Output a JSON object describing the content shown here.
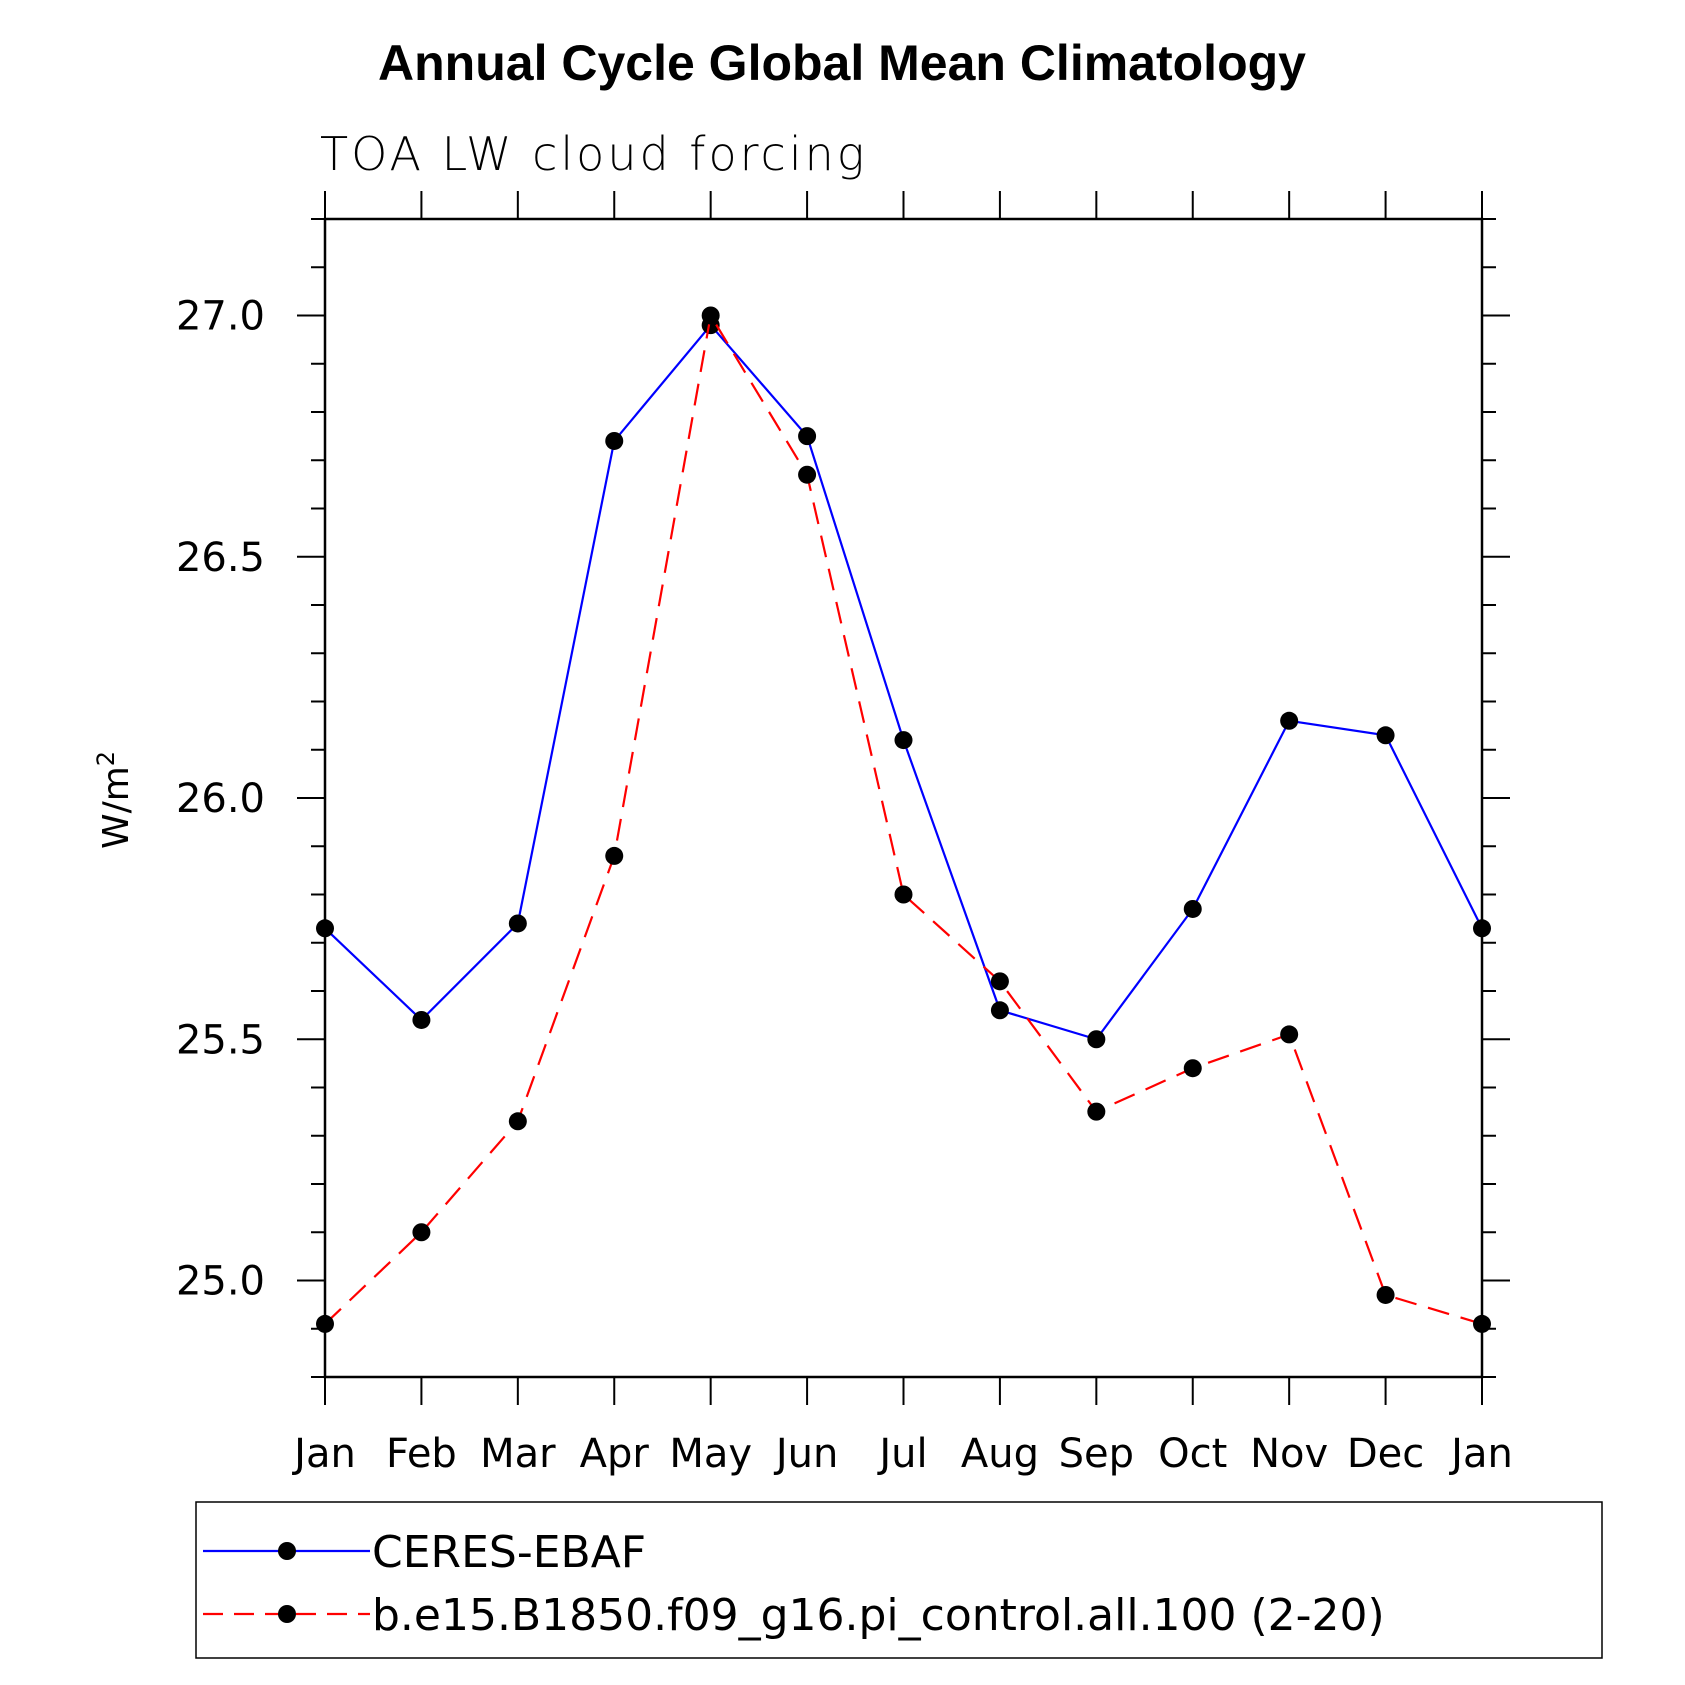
{
  "chart_data": {
    "type": "line",
    "title": "Annual Cycle Global Mean Climatology",
    "subtitle": "TOA LW cloud forcing",
    "xlabel": "",
    "ylabel": "W/m",
    "ylabel_superscript": "2",
    "categories": [
      "Jan",
      "Feb",
      "Mar",
      "Apr",
      "May",
      "Jun",
      "Jul",
      "Aug",
      "Sep",
      "Oct",
      "Nov",
      "Dec",
      "Jan"
    ],
    "ylim": [
      24.8,
      27.2
    ],
    "yticks_major": [
      "25.0",
      "25.5",
      "26.0",
      "26.5",
      "27.0"
    ],
    "series": [
      {
        "name": "CERES-EBAF",
        "color": "#0000ff",
        "dash": "solid",
        "marker": "circle",
        "values": [
          25.73,
          25.54,
          25.74,
          26.74,
          26.98,
          26.75,
          26.12,
          25.56,
          25.5,
          25.77,
          26.16,
          26.13,
          25.73
        ]
      },
      {
        "name": "b.e15.B1850.f09_g16.pi_control.all.100 (2-20)",
        "color": "#ff0000",
        "dash": "dashed",
        "marker": "circle",
        "values": [
          24.91,
          25.1,
          25.33,
          25.88,
          27.0,
          26.67,
          25.8,
          25.62,
          25.35,
          25.44,
          25.51,
          24.97,
          24.91
        ]
      }
    ],
    "legend_position": "bottom"
  }
}
